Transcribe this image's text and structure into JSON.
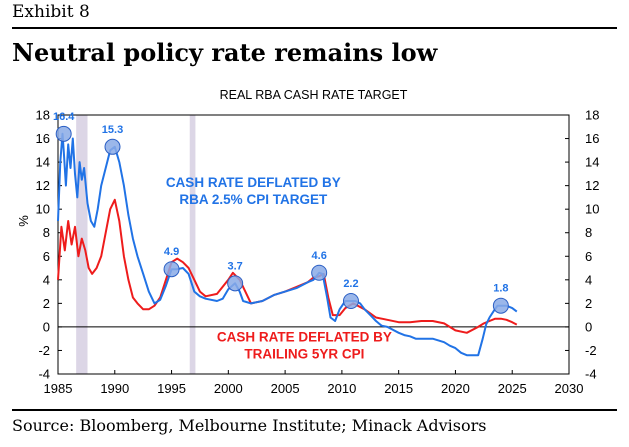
{
  "header": {
    "exhibit_label": "Exhibit 8",
    "headline": "Neutral policy rate remains low"
  },
  "footer": {
    "source": "Source: Bloomberg, Melbourne Institute; Minack Advisors"
  },
  "colors": {
    "blue_series": "#2173e6",
    "red_series": "#ee1c1c",
    "peak_marker_fill": "#8aaae6",
    "peak_marker_stroke": "#2b5fc4",
    "recession_band": "#dcd6e6",
    "plot_border": "#000000"
  },
  "chart_data": {
    "type": "line",
    "title": "REAL RBA CASH RATE TARGET",
    "xlabel": "",
    "ylabel": "%",
    "xlim": [
      1985,
      2030
    ],
    "ylim": [
      -4,
      18
    ],
    "x_ticks": [
      1985,
      1990,
      1995,
      2000,
      2005,
      2010,
      2015,
      2020,
      2025,
      2030
    ],
    "y_ticks": [
      -4,
      -2,
      0,
      2,
      4,
      6,
      8,
      10,
      12,
      14,
      16,
      18
    ],
    "y_tick_labels": [
      "-4",
      "-2",
      "0",
      "2",
      "4",
      "6",
      "8",
      "10",
      "12",
      "14",
      "16",
      "18"
    ],
    "right_axis_mirror": true,
    "grid": false,
    "shaded_periods": [
      [
        1986.6,
        1987.6
      ],
      [
        1996.6,
        1997.1
      ]
    ],
    "series": [
      {
        "name": "CASH RATE DEFLATED BY RBA 2.5% CPI TARGET",
        "label_lines": [
          "CASH RATE DEFLATED BY",
          "RBA 2.5% CPI TARGET"
        ],
        "color": "#2173e6",
        "x": [
          1985.0,
          1985.2,
          1985.4,
          1985.5,
          1985.7,
          1985.9,
          1986.1,
          1986.3,
          1986.5,
          1986.7,
          1986.9,
          1987.1,
          1987.3,
          1987.6,
          1987.9,
          1988.2,
          1988.5,
          1988.8,
          1989.2,
          1989.6,
          1990.0,
          1990.4,
          1990.8,
          1991.2,
          1991.6,
          1992.0,
          1992.5,
          1993.0,
          1993.5,
          1994.0,
          1994.5,
          1995.0,
          1995.5,
          1996.0,
          1996.5,
          1997.0,
          1997.5,
          1998.0,
          1999.0,
          1999.5,
          2000.0,
          2000.6,
          2001.0,
          2001.3,
          2002.0,
          2003.0,
          2004.0,
          2005.0,
          2006.0,
          2007.0,
          2007.5,
          2008.0,
          2008.3,
          2008.7,
          2009.0,
          2009.4,
          2009.8,
          2010.3,
          2010.8,
          2011.2,
          2011.6,
          2012.0,
          2012.5,
          2013.0,
          2013.5,
          2014.0,
          2015.0,
          2015.5,
          2016.0,
          2016.5,
          2017.0,
          2018.0,
          2019.0,
          2019.5,
          2020.0,
          2020.5,
          2021.0,
          2022.0,
          2022.4,
          2022.7,
          2023.0,
          2023.4,
          2023.7,
          2024.0,
          2024.5,
          2025.0,
          2025.4
        ],
        "y": [
          9.0,
          14.0,
          16.4,
          15.0,
          12.0,
          15.5,
          13.5,
          16.0,
          13.0,
          11.0,
          14.0,
          12.5,
          13.5,
          10.5,
          9.0,
          8.5,
          10.0,
          12.0,
          13.5,
          15.0,
          15.3,
          14.0,
          12.0,
          9.5,
          7.5,
          6.0,
          4.5,
          3.0,
          2.0,
          2.3,
          3.5,
          4.9,
          4.9,
          5.0,
          4.5,
          3.0,
          2.6,
          2.4,
          2.2,
          2.4,
          3.2,
          3.7,
          3.0,
          2.2,
          2.0,
          2.2,
          2.7,
          3.0,
          3.3,
          3.8,
          4.0,
          4.6,
          4.5,
          2.5,
          0.8,
          0.5,
          1.5,
          2.2,
          2.2,
          2.2,
          2.0,
          1.5,
          1.0,
          0.5,
          0.1,
          0.0,
          -0.5,
          -0.7,
          -0.8,
          -1.0,
          -1.0,
          -1.0,
          -1.3,
          -1.6,
          -1.8,
          -2.2,
          -2.4,
          -2.4,
          -1.0,
          0.2,
          0.8,
          1.4,
          1.8,
          1.8,
          1.8,
          1.6,
          1.3
        ]
      },
      {
        "name": "CASH RATE DEFLATED BY TRAILING 5YR CPI",
        "label_lines": [
          "CASH RATE DEFLATED BY",
          "TRAILING 5YR CPI"
        ],
        "color": "#ee1c1c",
        "x": [
          1985.0,
          1985.3,
          1985.6,
          1985.9,
          1986.2,
          1986.5,
          1986.8,
          1987.1,
          1987.4,
          1987.7,
          1988.0,
          1988.4,
          1988.8,
          1989.2,
          1989.6,
          1990.0,
          1990.4,
          1990.8,
          1991.2,
          1991.6,
          1992.0,
          1992.5,
          1993.0,
          1993.5,
          1994.0,
          1994.5,
          1995.0,
          1995.5,
          1996.0,
          1996.5,
          1997.0,
          1997.5,
          1998.0,
          1999.0,
          2000.0,
          2000.4,
          2001.0,
          2002.0,
          2003.0,
          2004.0,
          2005.0,
          2006.0,
          2007.0,
          2007.5,
          2008.0,
          2008.4,
          2008.8,
          2009.2,
          2009.8,
          2010.3,
          2011.0,
          2012.0,
          2013.0,
          2014.0,
          2015.0,
          2016.0,
          2017.0,
          2018.0,
          2019.0,
          2020.0,
          2021.0,
          2022.0,
          2022.5,
          2023.0,
          2023.5,
          2024.0,
          2024.5,
          2025.0,
          2025.4
        ],
        "y": [
          4.0,
          8.5,
          6.5,
          9.0,
          7.0,
          8.5,
          6.0,
          7.5,
          6.5,
          5.0,
          4.5,
          5.0,
          6.0,
          8.0,
          10.0,
          10.8,
          9.0,
          6.0,
          4.0,
          2.5,
          2.0,
          1.5,
          1.5,
          1.8,
          2.5,
          4.0,
          5.5,
          5.8,
          5.5,
          5.0,
          4.0,
          3.0,
          2.6,
          2.8,
          4.0,
          4.6,
          4.0,
          2.0,
          2.2,
          2.7,
          3.0,
          3.4,
          3.8,
          4.2,
          4.3,
          4.5,
          2.5,
          1.0,
          1.0,
          1.6,
          2.0,
          1.5,
          0.8,
          0.6,
          0.4,
          0.4,
          0.5,
          0.5,
          0.3,
          -0.3,
          -0.5,
          0.0,
          0.3,
          0.5,
          0.7,
          0.7,
          0.6,
          0.4,
          0.2
        ]
      }
    ],
    "peak_annotations": [
      {
        "x": 1985.5,
        "y": 16.4,
        "label": "16.4"
      },
      {
        "x": 1989.8,
        "y": 15.3,
        "label": "15.3"
      },
      {
        "x": 1995.0,
        "y": 4.9,
        "label": "4.9"
      },
      {
        "x": 2000.6,
        "y": 3.7,
        "label": "3.7"
      },
      {
        "x": 2008.0,
        "y": 4.6,
        "label": "4.6"
      },
      {
        "x": 2010.8,
        "y": 2.2,
        "label": "2.2"
      },
      {
        "x": 2024.0,
        "y": 1.8,
        "label": "1.8"
      }
    ]
  }
}
